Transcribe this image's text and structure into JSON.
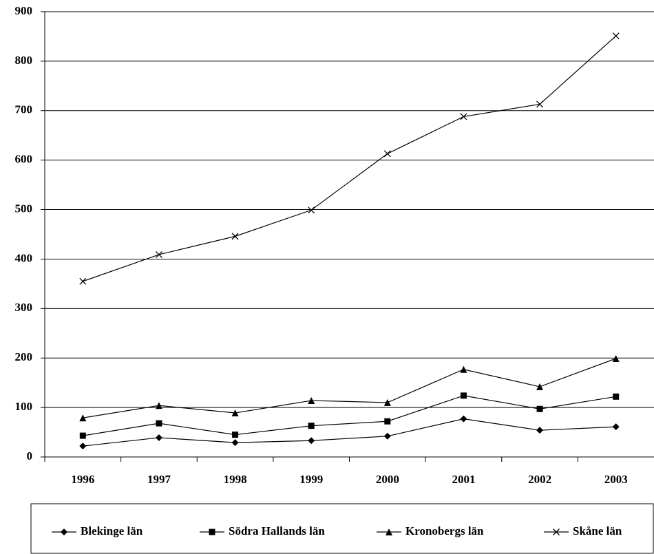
{
  "chart_data": {
    "type": "line",
    "categories": [
      "1996",
      "1997",
      "1998",
      "1999",
      "2000",
      "2001",
      "2002",
      "2003"
    ],
    "series": [
      {
        "name": "Blekinge län",
        "color": "#000000",
        "marker": "diamond",
        "values": [
          22,
          39,
          29,
          33,
          42,
          77,
          54,
          61
        ]
      },
      {
        "name": "Södra Hallands län",
        "color": "#000000",
        "marker": "square",
        "values": [
          43,
          68,
          45,
          63,
          72,
          124,
          97,
          122
        ]
      },
      {
        "name": "Kronobergs län",
        "color": "#000000",
        "marker": "triangle",
        "values": [
          79,
          104,
          89,
          114,
          110,
          177,
          142,
          199
        ]
      },
      {
        "name": "Skåne län",
        "color": "#000000",
        "marker": "x",
        "values": [
          355,
          409,
          446,
          499,
          613,
          688,
          713,
          851
        ]
      }
    ],
    "ylim": [
      0,
      900
    ],
    "yticks": [
      0,
      100,
      200,
      300,
      400,
      500,
      600,
      700,
      800,
      900
    ],
    "grid": true,
    "legend": "bottom"
  }
}
